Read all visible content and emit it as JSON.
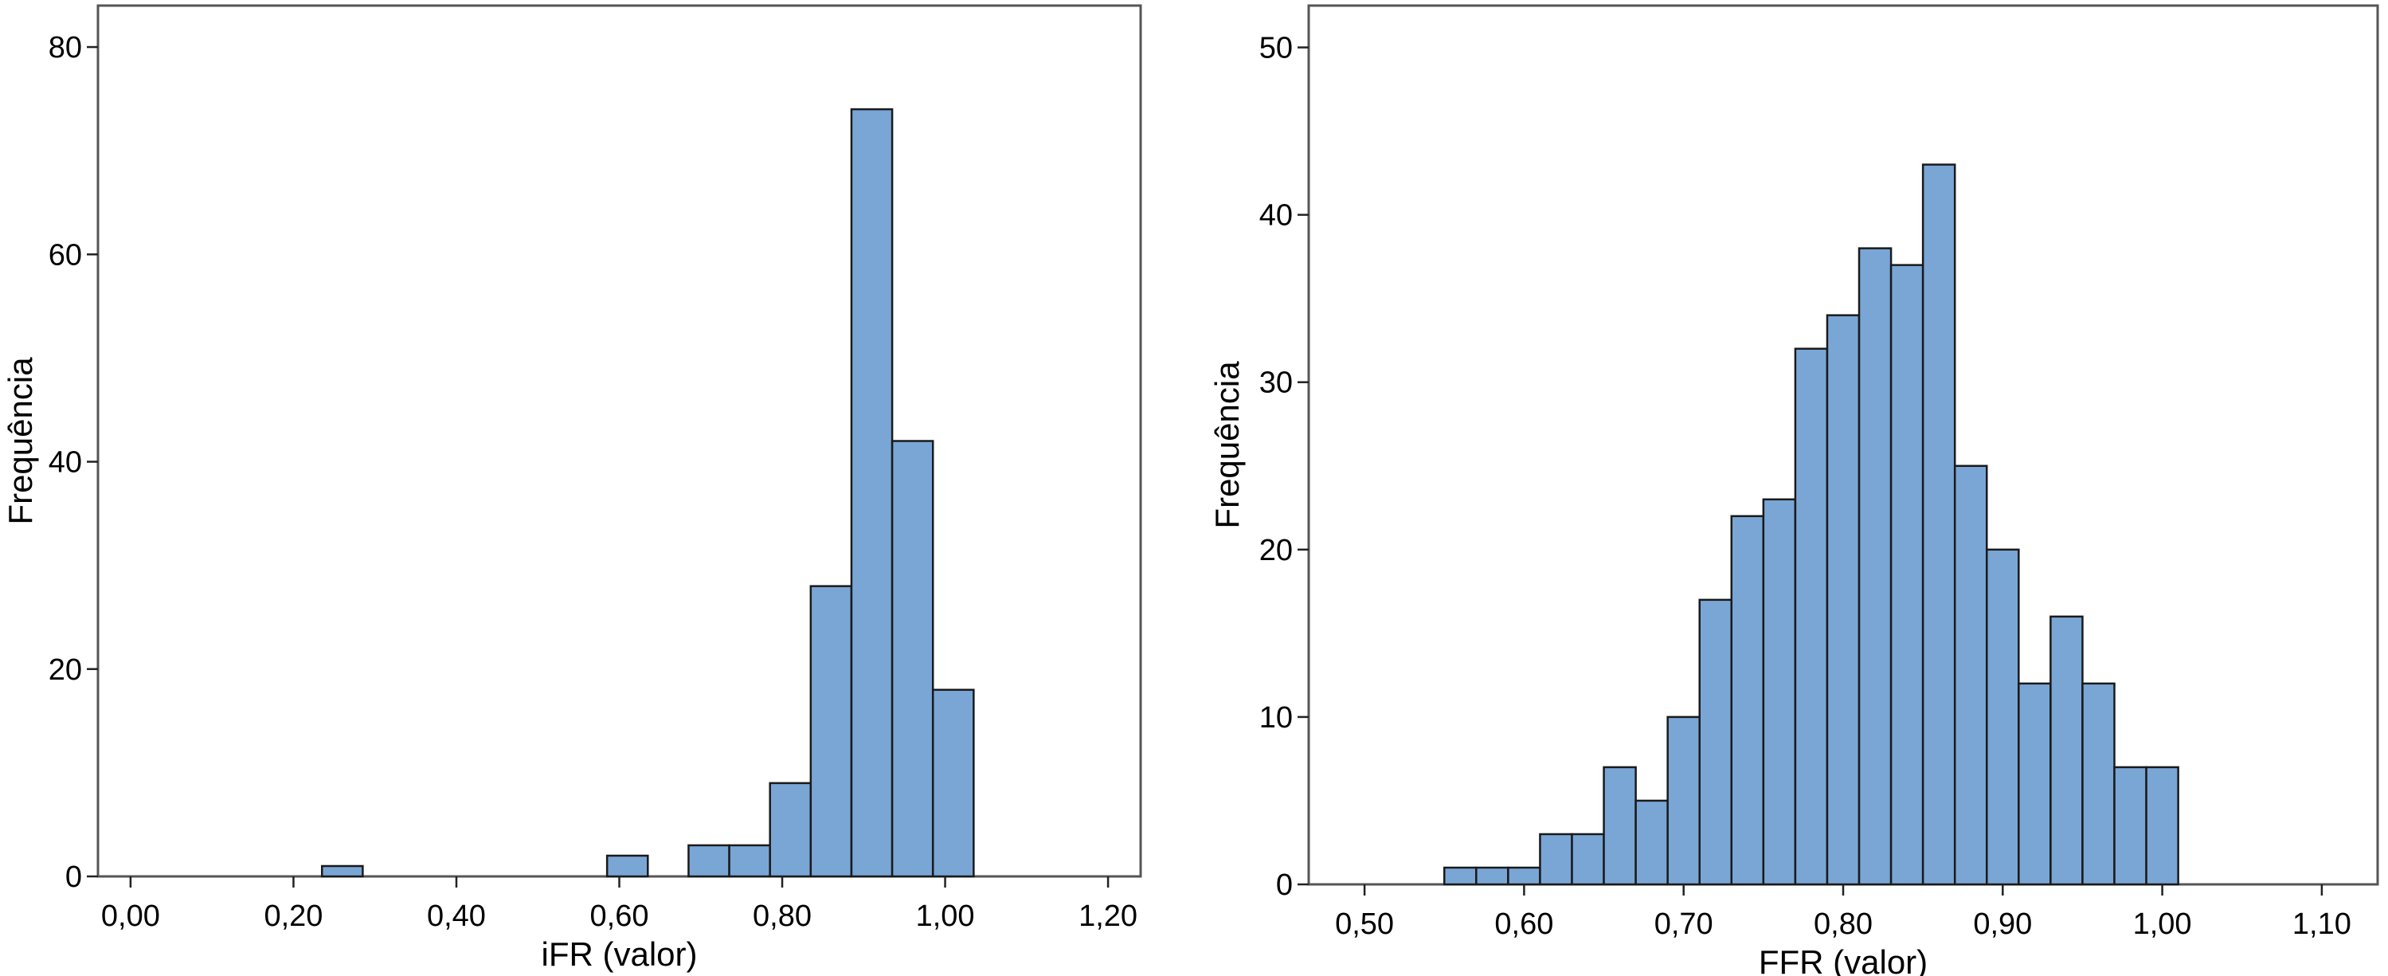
{
  "chart_data": [
    {
      "type": "bar",
      "subtype": "histogram",
      "xlabel": "iFR (valor)",
      "ylabel": "Frequência",
      "xlim": [
        -0.04,
        1.24
      ],
      "ylim": [
        0,
        84
      ],
      "x_ticks": [
        0.0,
        0.2,
        0.4,
        0.6,
        0.8,
        1.0,
        1.2
      ],
      "x_tick_labels": [
        "0,00",
        "0,20",
        "0,40",
        "0,60",
        "0,80",
        "1,00",
        "1,20"
      ],
      "y_ticks": [
        0,
        20,
        40,
        60,
        80
      ],
      "y_tick_labels": [
        "0",
        "20",
        "40",
        "60",
        "80"
      ],
      "bin_width": 0.05,
      "bars": [
        {
          "x0": 0.235,
          "x1": 0.285,
          "value": 1
        },
        {
          "x0": 0.585,
          "x1": 0.635,
          "value": 2
        },
        {
          "x0": 0.685,
          "x1": 0.735,
          "value": 3
        },
        {
          "x0": 0.735,
          "x1": 0.785,
          "value": 3
        },
        {
          "x0": 0.785,
          "x1": 0.835,
          "value": 9
        },
        {
          "x0": 0.835,
          "x1": 0.885,
          "value": 28
        },
        {
          "x0": 0.885,
          "x1": 0.935,
          "value": 74
        },
        {
          "x0": 0.935,
          "x1": 0.985,
          "value": 42
        },
        {
          "x0": 0.985,
          "x1": 1.035,
          "value": 18
        }
      ],
      "bar_color": "#7aa6d6",
      "grid": false,
      "legend": "none"
    },
    {
      "type": "bar",
      "subtype": "histogram",
      "xlabel": "FFR (valor)",
      "ylabel": "Frequência",
      "xlim": [
        0.465,
        1.135
      ],
      "ylim": [
        0,
        52.5
      ],
      "x_ticks": [
        0.5,
        0.6,
        0.7,
        0.8,
        0.9,
        1.0,
        1.1
      ],
      "x_tick_labels": [
        "0,50",
        "0,60",
        "0,70",
        "0,80",
        "0,90",
        "1,00",
        "1,10"
      ],
      "y_ticks": [
        0,
        10,
        20,
        30,
        40,
        50
      ],
      "y_tick_labels": [
        "0",
        "10",
        "20",
        "30",
        "40",
        "50"
      ],
      "bin_width": 0.02,
      "bars": [
        {
          "x0": 0.55,
          "x1": 0.57,
          "value": 1
        },
        {
          "x0": 0.57,
          "x1": 0.59,
          "value": 1
        },
        {
          "x0": 0.59,
          "x1": 0.61,
          "value": 1
        },
        {
          "x0": 0.61,
          "x1": 0.63,
          "value": 3
        },
        {
          "x0": 0.63,
          "x1": 0.65,
          "value": 3
        },
        {
          "x0": 0.65,
          "x1": 0.67,
          "value": 7
        },
        {
          "x0": 0.67,
          "x1": 0.69,
          "value": 5
        },
        {
          "x0": 0.69,
          "x1": 0.71,
          "value": 10
        },
        {
          "x0": 0.71,
          "x1": 0.73,
          "value": 17
        },
        {
          "x0": 0.73,
          "x1": 0.75,
          "value": 22
        },
        {
          "x0": 0.75,
          "x1": 0.77,
          "value": 23
        },
        {
          "x0": 0.77,
          "x1": 0.79,
          "value": 32
        },
        {
          "x0": 0.79,
          "x1": 0.81,
          "value": 34
        },
        {
          "x0": 0.81,
          "x1": 0.83,
          "value": 38
        },
        {
          "x0": 0.83,
          "x1": 0.85,
          "value": 37
        },
        {
          "x0": 0.85,
          "x1": 0.87,
          "value": 43
        },
        {
          "x0": 0.87,
          "x1": 0.89,
          "value": 25
        },
        {
          "x0": 0.89,
          "x1": 0.91,
          "value": 20
        },
        {
          "x0": 0.91,
          "x1": 0.93,
          "value": 12
        },
        {
          "x0": 0.93,
          "x1": 0.95,
          "value": 16
        },
        {
          "x0": 0.95,
          "x1": 0.97,
          "value": 12
        },
        {
          "x0": 0.97,
          "x1": 0.99,
          "value": 7
        },
        {
          "x0": 0.99,
          "x1": 1.01,
          "value": 7
        }
      ],
      "bar_color": "#7aa6d6",
      "grid": false,
      "legend": "none"
    }
  ]
}
